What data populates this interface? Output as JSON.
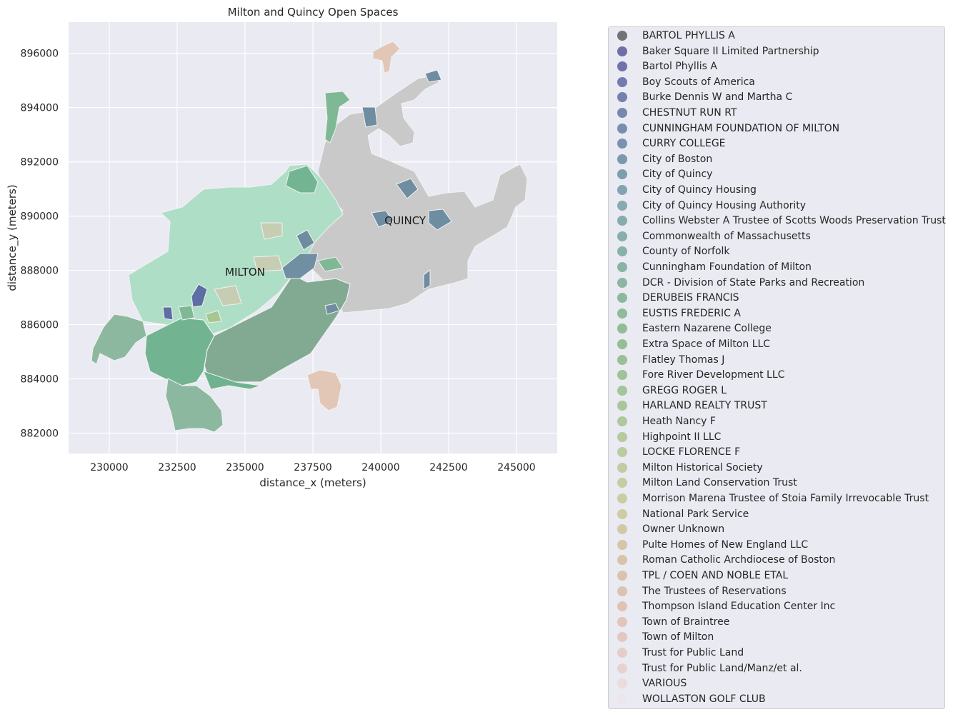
{
  "title": "Milton and Quincy Open Spaces",
  "xlabel": "distance_x (meters)",
  "ylabel": "distance_y (meters)",
  "xlim": [
    228500,
    246500
  ],
  "ylim": [
    881250,
    897150
  ],
  "x_ticks": [
    230000,
    232500,
    235000,
    237500,
    240000,
    242500,
    245000
  ],
  "y_ticks": [
    882000,
    884000,
    886000,
    888000,
    890000,
    892000,
    894000,
    896000
  ],
  "towns": [
    {
      "name": "MILTON",
      "x": 235000,
      "y": 887800
    },
    {
      "name": "QUINCY",
      "x": 240900,
      "y": 889700
    }
  ],
  "colors": {
    "background": "#eaeaf2",
    "grid": "#ffffff",
    "quincy_base": "#c9c9c9",
    "milton_base": "#afdec7"
  },
  "legend": [
    {
      "label": "BARTOL PHYLLIS A",
      "color": "#737373"
    },
    {
      "label": "Baker Square II Limited Partnership",
      "color": "#6f6fa8"
    },
    {
      "label": "Bartol Phyllis A",
      "color": "#7073ab"
    },
    {
      "label": "Boy Scouts of America",
      "color": "#727bae"
    },
    {
      "label": "Burke Dennis W and Martha C",
      "color": "#7481ae"
    },
    {
      "label": "CHESTNUT RUN RT",
      "color": "#7688b0"
    },
    {
      "label": "CUNNINGHAM FOUNDATION OF MILTON",
      "color": "#778eaf"
    },
    {
      "label": "CURRY COLLEGE",
      "color": "#7993ae"
    },
    {
      "label": "City of Boston",
      "color": "#7b98ad"
    },
    {
      "label": "City of Quincy",
      "color": "#7e9eae"
    },
    {
      "label": "City of Quincy Housing",
      "color": "#82a4b0"
    },
    {
      "label": "City of Quincy Housing Authority",
      "color": "#86a9b2"
    },
    {
      "label": "Collins Webster A Trustee of Scotts Woods Preservation Trust",
      "color": "#86acae"
    },
    {
      "label": "Commonwealth of Massachusetts",
      "color": "#86afab"
    },
    {
      "label": "County of Norfolk",
      "color": "#87b2a7"
    },
    {
      "label": "Cunningham Foundation of Milton",
      "color": "#89b4a5"
    },
    {
      "label": "DCR - Division of State Parks and Recreation",
      "color": "#8bb6a1"
    },
    {
      "label": "DERUBEIS FRANCIS",
      "color": "#8db89d"
    },
    {
      "label": "EUSTIS FREDERIC A",
      "color": "#8fbb99"
    },
    {
      "label": "Eastern Nazarene College",
      "color": "#92bc97"
    },
    {
      "label": "Extra Space of Milton LLC",
      "color": "#95be94"
    },
    {
      "label": "Flatley Thomas J",
      "color": "#9ac095"
    },
    {
      "label": "Fore River Development LLC",
      "color": "#9fc297"
    },
    {
      "label": "GREGG ROGER L",
      "color": "#a4c499"
    },
    {
      "label": "HARLAND REALTY TRUST",
      "color": "#a9c69b"
    },
    {
      "label": "Heath Nancy F",
      "color": "#afc89c"
    },
    {
      "label": "Highpoint II LLC",
      "color": "#b5ca9e"
    },
    {
      "label": "LOCKE FLORENCE F",
      "color": "#bbcba0"
    },
    {
      "label": "Milton Historical Society",
      "color": "#c0cca1"
    },
    {
      "label": "Milton Land Conservation Trust",
      "color": "#c4cda3"
    },
    {
      "label": "Morrison Marena Trustee of Stoia Family Irrevocable Trust",
      "color": "#c9cda4"
    },
    {
      "label": "National Park Service",
      "color": "#cdcca5"
    },
    {
      "label": "Owner Unknown",
      "color": "#d1c9a6"
    },
    {
      "label": "Pulte Homes of New England LLC",
      "color": "#d4c6a7"
    },
    {
      "label": "Roman Catholic Archdiocese of Boston",
      "color": "#d7c4a9"
    },
    {
      "label": "TPL / COEN AND NOBLE ETAL",
      "color": "#dac2ac"
    },
    {
      "label": "The Trustees of Reservations",
      "color": "#dcc2b0"
    },
    {
      "label": "Thompson Island Education Center Inc",
      "color": "#dfc3b5"
    },
    {
      "label": "Town of Braintree",
      "color": "#e1c5bb"
    },
    {
      "label": "Town of Milton",
      "color": "#e3c8c1"
    },
    {
      "label": "Trust for Public Land",
      "color": "#e6cdc9"
    },
    {
      "label": "Trust for Public Land/Manz/et al.",
      "color": "#e8d2d1"
    },
    {
      "label": "VARIOUS",
      "color": "#ebdbdc"
    },
    {
      "label": "WOLLASTON GOLF CLUB",
      "color": "#ede6ea"
    }
  ]
}
